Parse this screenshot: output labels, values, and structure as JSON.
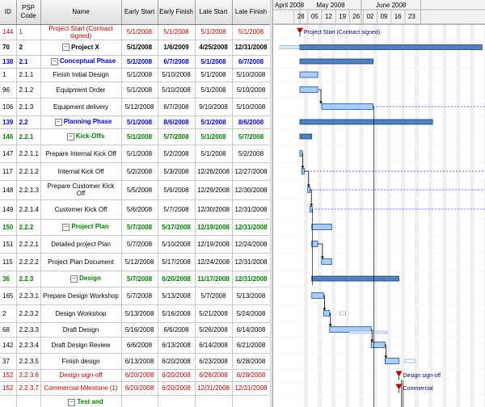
{
  "columns": {
    "id": "ID",
    "psp": "PSP Code",
    "name": "Name",
    "early_start": "Early Start",
    "early_finish": "Early Finish",
    "late_start": "Late Start",
    "late_finish": "Late Finish"
  },
  "rows": [
    {
      "id": "144",
      "psp": "1",
      "name": "Project Start (Contract signed)",
      "es": "5/1/2008",
      "ef": "5/1/2008",
      "ls": "5/1/2008",
      "lf": "5/1/2008",
      "style": "red",
      "indent": 0,
      "toggle": false
    },
    {
      "id": "70",
      "psp": "2",
      "name": "Project X",
      "es": "5/1/2008",
      "ef": "1/6/2009",
      "ls": "4/25/2008",
      "lf": "12/31/2008",
      "style": "bold",
      "indent": 0,
      "toggle": true
    },
    {
      "id": "138",
      "psp": "2.1",
      "name": "Conceptual Phase",
      "es": "5/1/2008",
      "ef": "6/7/2008",
      "ls": "5/1/2008",
      "lf": "6/7/2008",
      "style": "blue",
      "indent": 1,
      "toggle": true
    },
    {
      "id": "1",
      "psp": "2.1.1",
      "name": "Finish Initial Design",
      "es": "5/1/2008",
      "ef": "5/10/2008",
      "ls": "5/1/2008",
      "lf": "5/10/2008",
      "style": "normal",
      "indent": 2,
      "toggle": false
    },
    {
      "id": "96",
      "psp": "2.1.2",
      "name": "Equipment Order",
      "es": "5/1/2008",
      "ef": "5/10/2008",
      "ls": "5/1/2008",
      "lf": "5/10/2008",
      "style": "normal",
      "indent": 2,
      "toggle": false
    },
    {
      "id": "106",
      "psp": "2.1.3",
      "name": "Equipment delivery",
      "es": "5/12/2008",
      "ef": "6/7/2008",
      "ls": "9/10/2008",
      "lf": "5/10/2008",
      "style": "normal",
      "indent": 2,
      "toggle": false
    },
    {
      "id": "139",
      "psp": "2.2",
      "name": "Planning Phase",
      "es": "5/1/2008",
      "ef": "8/6/2008",
      "ls": "5/1/2008",
      "lf": "8/6/2008",
      "style": "blue",
      "indent": 1,
      "toggle": true
    },
    {
      "id": "146",
      "psp": "2.2.1",
      "name": "Kick-Offs",
      "es": "5/1/2008",
      "ef": "5/7/2008",
      "ls": "5/1/2008",
      "lf": "5/7/2008",
      "style": "green",
      "indent": 2,
      "toggle": true
    },
    {
      "id": "147",
      "psp": "2.2.1.1",
      "name": "Prepare Internal Kick Off",
      "es": "5/1/2008",
      "ef": "5/2/2008",
      "ls": "5/1/2008",
      "lf": "5/2/2008",
      "style": "normal",
      "indent": 3,
      "toggle": false
    },
    {
      "id": "117",
      "psp": "2.2.1.2",
      "name": "Internal Kick Off",
      "es": "5/2/2008",
      "ef": "5/3/2008",
      "ls": "12/26/2008",
      "lf": "12/27/2008",
      "style": "normal",
      "indent": 3,
      "toggle": false
    },
    {
      "id": "148",
      "psp": "2.2.1.3",
      "name": "Prepare Customer Kick Off",
      "es": "5/5/2008",
      "ef": "5/6/2008",
      "ls": "12/29/2008",
      "lf": "12/30/2008",
      "style": "normal",
      "indent": 3,
      "toggle": false
    },
    {
      "id": "149",
      "psp": "2.2.1.4",
      "name": "Customer Kick Off",
      "es": "5/6/2008",
      "ef": "5/7/2008",
      "ls": "12/30/2008",
      "lf": "12/31/2008",
      "style": "normal",
      "indent": 3,
      "toggle": false
    },
    {
      "id": "150",
      "psp": "2.2.2",
      "name": "Project Plan",
      "es": "5/7/2008",
      "ef": "5/17/2008",
      "ls": "12/19/2008",
      "lf": "12/31/2008",
      "style": "green",
      "indent": 2,
      "toggle": true
    },
    {
      "id": "151",
      "psp": "2.2.2.1",
      "name": "Detailed project Plan",
      "es": "5/7/2008",
      "ef": "5/10/2008",
      "ls": "12/19/2008",
      "lf": "12/24/2008",
      "style": "normal",
      "indent": 3,
      "toggle": false
    },
    {
      "id": "115",
      "psp": "2.2.2.2",
      "name": "Project Plan Document",
      "es": "5/12/2008",
      "ef": "5/17/2008",
      "ls": "12/24/2008",
      "lf": "12/31/2008",
      "style": "normal",
      "indent": 3,
      "toggle": false
    },
    {
      "id": "36",
      "psp": "2.2.3",
      "name": "Design",
      "es": "5/7/2008",
      "ef": "6/20/2008",
      "ls": "11/17/2008",
      "lf": "12/31/2008",
      "style": "green",
      "indent": 2,
      "toggle": true
    },
    {
      "id": "165",
      "psp": "2.2.3.1",
      "name": "Prepare Design Workshop",
      "es": "5/7/2008",
      "ef": "5/13/2008",
      "ls": "5/7/2008",
      "lf": "5/13/2008",
      "style": "normal",
      "indent": 3,
      "toggle": false
    },
    {
      "id": "2",
      "psp": "2.2.3.2",
      "name": "Design Workshop",
      "es": "5/13/2008",
      "ef": "5/16/2008",
      "ls": "5/21/2008",
      "lf": "5/24/2008",
      "style": "normal",
      "indent": 3,
      "toggle": false
    },
    {
      "id": "68",
      "psp": "2.2.3.3",
      "name": "Draft Design",
      "es": "5/16/2008",
      "ef": "6/6/2008",
      "ls": "5/26/2008",
      "lf": "6/14/2008",
      "style": "normal",
      "indent": 3,
      "toggle": false
    },
    {
      "id": "142",
      "psp": "2.2.3.4",
      "name": "Draft Design Review",
      "es": "6/6/2008",
      "ef": "6/13/2008",
      "ls": "6/14/2008",
      "lf": "6/21/2008",
      "style": "normal",
      "indent": 3,
      "toggle": false
    },
    {
      "id": "37",
      "psp": "2.2.3.5",
      "name": "Finish design",
      "es": "6/13/2008",
      "ef": "6/20/2008",
      "ls": "6/23/2008",
      "lf": "6/28/2008",
      "style": "normal",
      "indent": 3,
      "toggle": false
    },
    {
      "id": "152",
      "psp": "2.2.3.6",
      "name": "Design sign-off",
      "es": "6/20/2008",
      "ef": "6/20/2008",
      "ls": "6/28/2008",
      "lf": "6/28/2008",
      "style": "red",
      "indent": 3,
      "toggle": false
    },
    {
      "id": "152",
      "psp": "2.2.3.7",
      "name": "Commercial Milestone (1)",
      "es": "6/20/2008",
      "ef": "6/20/2008",
      "ls": "12/31/2008",
      "lf": "12/31/2008",
      "style": "red",
      "indent": 3,
      "toggle": false
    },
    {
      "id": "",
      "psp": "",
      "name": "Test and",
      "es": "",
      "ef": "",
      "ls": "",
      "lf": "",
      "style": "green",
      "indent": 2,
      "toggle": true
    }
  ],
  "timeline": {
    "months": [
      "April 2008",
      "May 2008",
      "June 2008"
    ],
    "days": [
      "28",
      "05",
      "12",
      "19",
      "26",
      "02",
      "09",
      "16",
      "23"
    ]
  },
  "gantt_labels": {
    "project_start": "Project Start (Contract signed)",
    "design_signoff": "Design sign-off",
    "commercial": "Commercial"
  },
  "colors": {
    "bar_fill": "#a9cdf6",
    "bar_stroke": "#1e4f9c",
    "summary_fill": "#4f81bd",
    "milestone": "#c00000",
    "link": "#000000",
    "slack": "#3333cc"
  },
  "icons": {
    "expanded": "collapse-toggle-icon",
    "milestone": "milestone-triangle-icon"
  }
}
